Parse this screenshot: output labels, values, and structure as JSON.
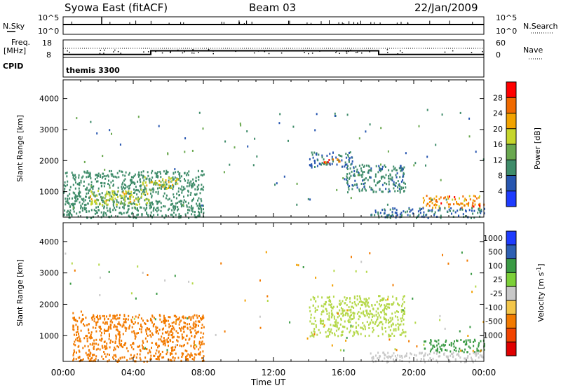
{
  "header": {
    "station": "Syowa East (fitACF)",
    "beam": "Beam 03",
    "date": "22/Jan/2009"
  },
  "top_panels": {
    "nsky_label": "N.Sky",
    "nsearch_label": "N.Search",
    "scale_hi": "10^5",
    "scale_lo": "10^0",
    "freq_label_1": "Freq.",
    "freq_label_2": "[MHz]",
    "freq_tick_hi": "18",
    "freq_tick_lo": "8",
    "nave_tick_hi": "60",
    "nave_tick_lo": "0",
    "nave_label": "Nave",
    "cpid_label": "CPID",
    "cpid_value": "themis 3300"
  },
  "colors": {
    "power_scale": [
      "#1e3cff",
      "#2756b0",
      "#3f8c6a",
      "#6aa84f",
      "#c6d62c",
      "#f2a300",
      "#f06a00",
      "#ff0000"
    ],
    "velocity_scale": [
      "#e00000",
      "#f24400",
      "#f27a00",
      "#f2a000",
      "#f3c64a",
      "#c8c8c8",
      "#b5d84a",
      "#7cd038",
      "#3a9a44",
      "#2d5fb3",
      "#1e3cff"
    ]
  },
  "chart_data": [
    {
      "type": "line",
      "name": "noise-panel",
      "title": "",
      "ylabel": "N.Sky",
      "y2label": "N.Search",
      "scale": "log",
      "yticks": [
        "10^0",
        "10^5"
      ],
      "series": [
        {
          "name": "N.Sky",
          "x": [
            "00:00",
            "04:00",
            "08:00",
            "12:00",
            "16:00",
            "20:00",
            "24:00"
          ],
          "values": [
            3.0,
            3.0,
            3.0,
            3.0,
            3.0,
            3.0,
            3.0
          ]
        }
      ]
    },
    {
      "type": "line",
      "name": "frequency-panel",
      "ylabel": "Freq. [MHz]",
      "y2label": "Nave",
      "yticks": [
        8,
        18
      ],
      "y2ticks": [
        0,
        60
      ],
      "series": [
        {
          "name": "Freq.",
          "x": [
            "00:00",
            "05:00",
            "05:00",
            "18:00",
            "18:00",
            "24:00"
          ],
          "values": [
            10.5,
            10.5,
            12.6,
            12.6,
            10.5,
            10.5
          ]
        }
      ]
    },
    {
      "type": "heatmap",
      "name": "power-panel",
      "xlabel": "",
      "ylabel": "Slant Range [km]",
      "xlim": [
        0,
        24
      ],
      "ylim": [
        180,
        4600
      ],
      "yticks": [
        1000,
        2000,
        3000,
        4000
      ],
      "colorbar": {
        "label": "Power [dB]",
        "ticks": [
          4,
          8,
          12,
          16,
          20,
          24,
          28
        ],
        "range": [
          0,
          32
        ]
      },
      "regions": [
        {
          "t0": 0.0,
          "t1": 8.0,
          "r0": 180,
          "r1": 1700,
          "value": 10
        },
        {
          "t0": 1.5,
          "t1": 5.0,
          "r0": 600,
          "r1": 1100,
          "value": 17
        },
        {
          "t0": 4.5,
          "t1": 6.5,
          "r0": 1100,
          "r1": 1500,
          "value": 18
        },
        {
          "t0": 14.0,
          "t1": 16.5,
          "r0": 1800,
          "r1": 2300,
          "value": 8
        },
        {
          "t0": 14.8,
          "t1": 15.8,
          "r0": 1900,
          "r1": 2100,
          "value": 27
        },
        {
          "t0": 16.0,
          "t1": 19.5,
          "r0": 1000,
          "r1": 1900,
          "value": 9
        },
        {
          "t0": 20.5,
          "t1": 24.0,
          "r0": 500,
          "r1": 900,
          "value": 24
        },
        {
          "t0": 17.5,
          "t1": 24.0,
          "r0": 180,
          "r1": 500,
          "value": 8
        }
      ]
    },
    {
      "type": "heatmap",
      "name": "velocity-panel",
      "xlabel": "Time UT",
      "ylabel": "Slant Range [km]",
      "xlim": [
        0,
        24
      ],
      "ylim": [
        180,
        4600
      ],
      "xticks": [
        "00:00",
        "04:00",
        "08:00",
        "12:00",
        "16:00",
        "20:00",
        "00:00"
      ],
      "yticks": [
        1000,
        2000,
        3000,
        4000
      ],
      "colorbar": {
        "label": "Velocity [m s-1]",
        "ticks": [
          1000,
          500,
          100,
          25,
          -25,
          -100,
          -500,
          -1000
        ]
      },
      "regions": [
        {
          "t0": 0.5,
          "t1": 8.0,
          "r0": 200,
          "r1": 1700,
          "value": -200
        },
        {
          "t0": 14.0,
          "t1": 19.5,
          "r0": 1000,
          "r1": 2300,
          "value": 80
        },
        {
          "t0": 20.5,
          "t1": 24.0,
          "r0": 500,
          "r1": 900,
          "value": 150
        },
        {
          "t0": 17.5,
          "t1": 24.0,
          "r0": 180,
          "r1": 500,
          "value": 10
        }
      ]
    }
  ],
  "labels": {
    "range_label": "Slant Range [km]",
    "power_label": "Power [dB]",
    "velocity_label_main": "Velocity [m s",
    "velocity_label_sup": "-1",
    "velocity_label_end": "]",
    "time_label": "Time UT"
  }
}
